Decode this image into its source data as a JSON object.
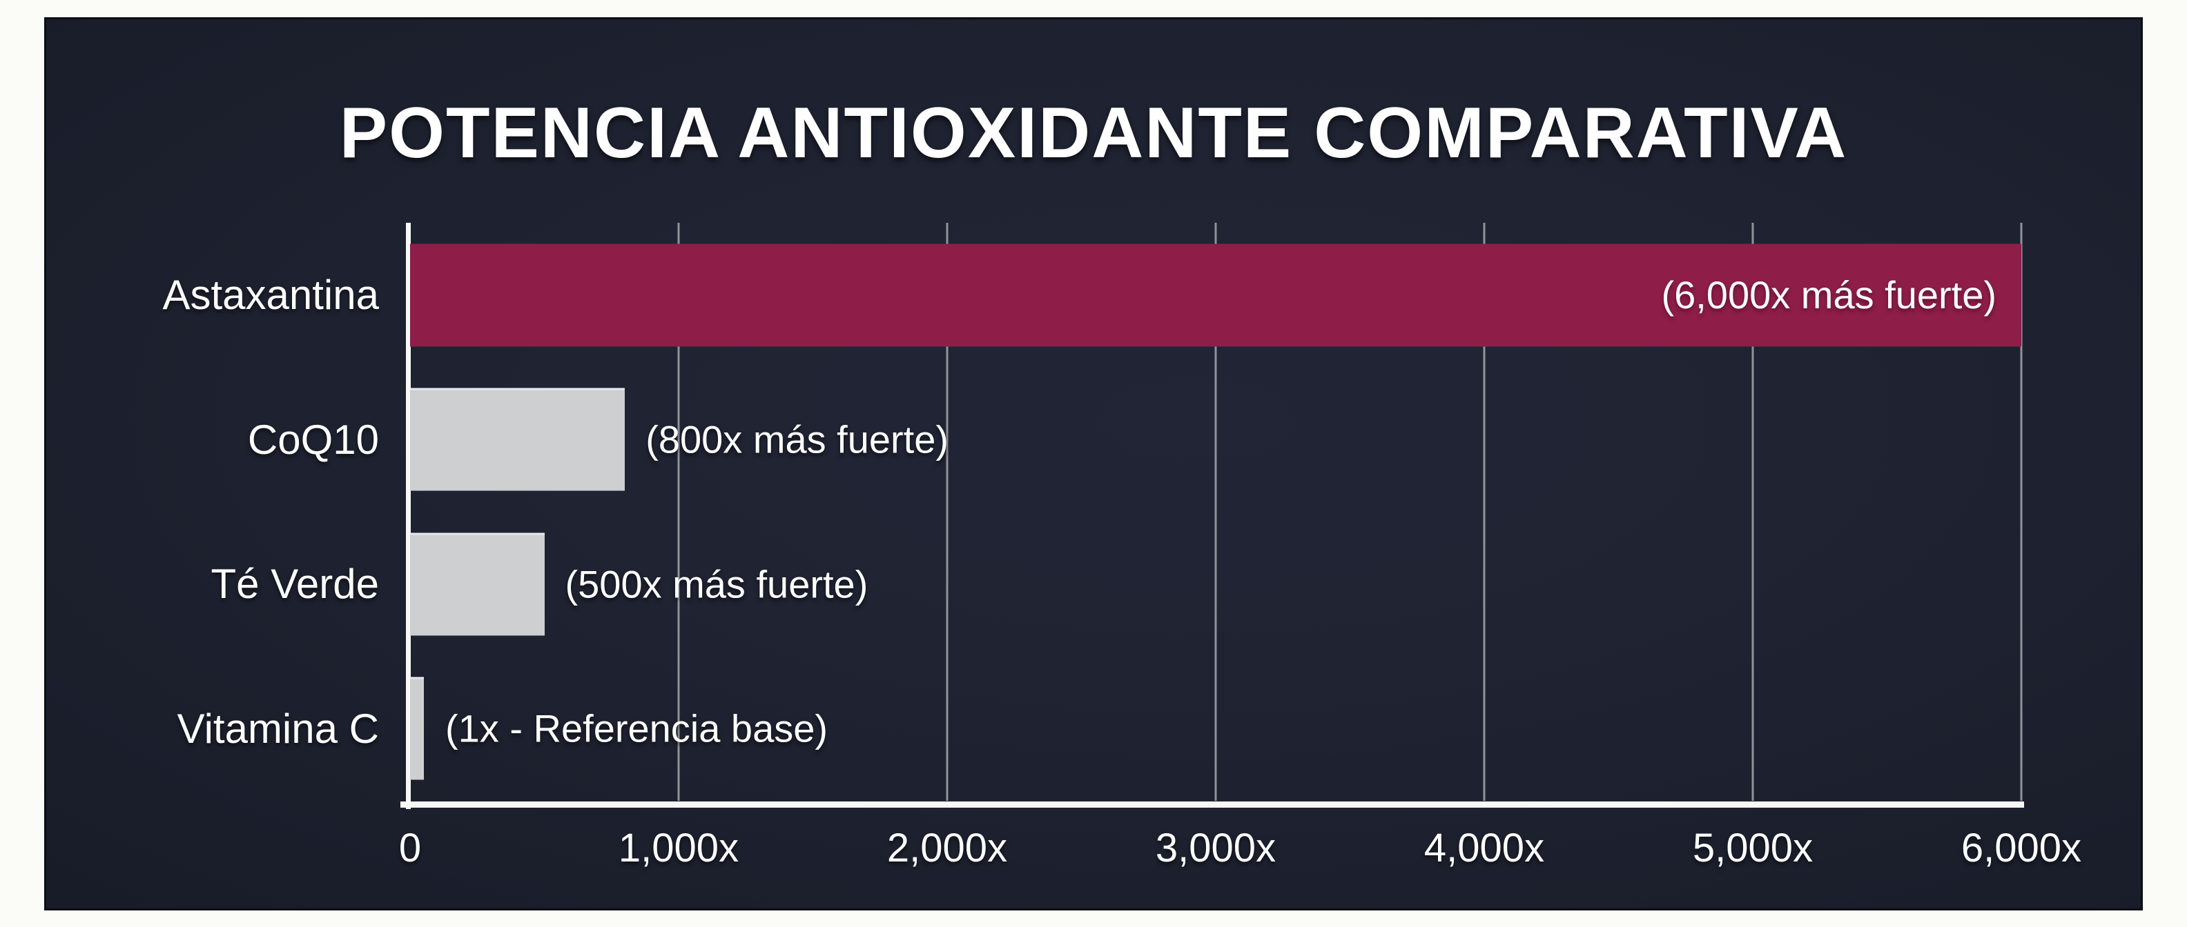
{
  "page": {
    "background_color": "#FBFBF8"
  },
  "panel": {
    "background_color": "#1E2230",
    "border_color": "#0B0E15"
  },
  "chart_data": {
    "type": "bar",
    "orientation": "horizontal",
    "title": "POTENCIA ANTIOXIDANTE COMPARATIVA",
    "categories": [
      "Astaxantina",
      "CoQ10",
      "Té Verde",
      "Vitamina C"
    ],
    "values": [
      6000,
      800,
      500,
      1
    ],
    "bar_labels": [
      "(6,000x más fuerte)",
      "(800x más fuerte)",
      "(500x más fuerte)",
      "(1x - Referencia base)"
    ],
    "bar_label_placement": [
      "inside-end",
      "outside-end",
      "outside-end",
      "outside-end"
    ],
    "bar_colors": [
      "#8E1D48",
      "#CDCFD0",
      "#CDCFD0",
      "#CDCFD0"
    ],
    "accent_color": "#8E1D48",
    "muted_bar_color": "#CDCFD0",
    "xlabel": "",
    "ylabel": "",
    "xlim": [
      0,
      6000
    ],
    "xticks": [
      {
        "value": 0,
        "label": "0"
      },
      {
        "value": 1000,
        "label": "1,000x"
      },
      {
        "value": 2000,
        "label": "2,000x"
      },
      {
        "value": 3000,
        "label": "3,000x"
      },
      {
        "value": 4000,
        "label": "4,000x"
      },
      {
        "value": 5000,
        "label": "5,000x"
      },
      {
        "value": 6000,
        "label": "6,000x"
      }
    ],
    "grid": "vertical-gridlines-on",
    "gridline_color": "#8F939A",
    "axis_line_color": "#F8F8F6",
    "text_color": "#FFFFFF",
    "legend": "none"
  }
}
